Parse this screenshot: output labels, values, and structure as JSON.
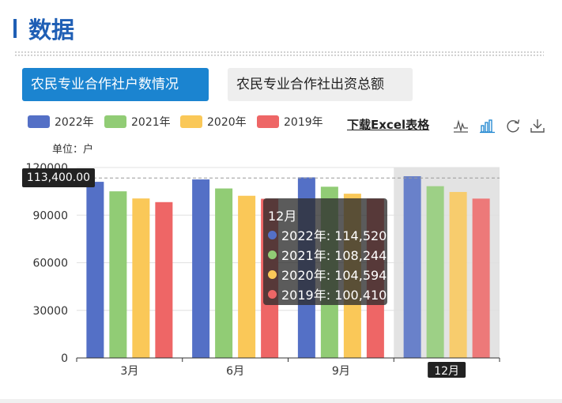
{
  "page": {
    "title": "数据"
  },
  "tabs": [
    {
      "label": "农民专业合作社户数情况",
      "active": true
    },
    {
      "label": "农民专业合作社出资总额",
      "active": false
    }
  ],
  "toolbar": {
    "download_label": "下载Excel表格",
    "icons": [
      "line-chart-icon",
      "bar-chart-icon",
      "refresh-icon",
      "save-image-icon"
    ]
  },
  "colors": {
    "brand": "#1f5fb5",
    "tab_active": "#1b84d0",
    "s2022": "#5470c6",
    "s2021": "#91cc75",
    "s2020": "#fac858",
    "s2019": "#ee6666"
  },
  "chart_data": {
    "type": "bar",
    "unit_label": "单位：户",
    "categories": [
      "3月",
      "6月",
      "9月",
      "12月"
    ],
    "series": [
      {
        "name": "2022年",
        "color": "#5470c6",
        "values": [
          111000,
          112500,
          113800,
          114520
        ]
      },
      {
        "name": "2021年",
        "color": "#91cc75",
        "values": [
          105000,
          106800,
          107900,
          108244
        ]
      },
      {
        "name": "2020年",
        "color": "#fac858",
        "values": [
          100500,
          102200,
          103500,
          104594
        ]
      },
      {
        "name": "2019年",
        "color": "#ee6666",
        "values": [
          98200,
          100300,
          100350,
          100410
        ]
      }
    ],
    "ylim": [
      0,
      120000
    ],
    "yticks": [
      "0",
      "30000",
      "60000",
      "90000",
      "120000"
    ],
    "grid": true,
    "legend_position": "top-left",
    "hover_value_label": "113,400.00",
    "hover_value": 113400,
    "highlighted_category": "12月",
    "tooltip": {
      "title": "12月",
      "rows": [
        {
          "label": "2022年: 114,520",
          "color": "#5470c6"
        },
        {
          "label": "2021年: 108,244",
          "color": "#91cc75"
        },
        {
          "label": "2020年: 104,594",
          "color": "#fac858"
        },
        {
          "label": "2019年: 100,410",
          "color": "#ee6666"
        }
      ]
    }
  }
}
